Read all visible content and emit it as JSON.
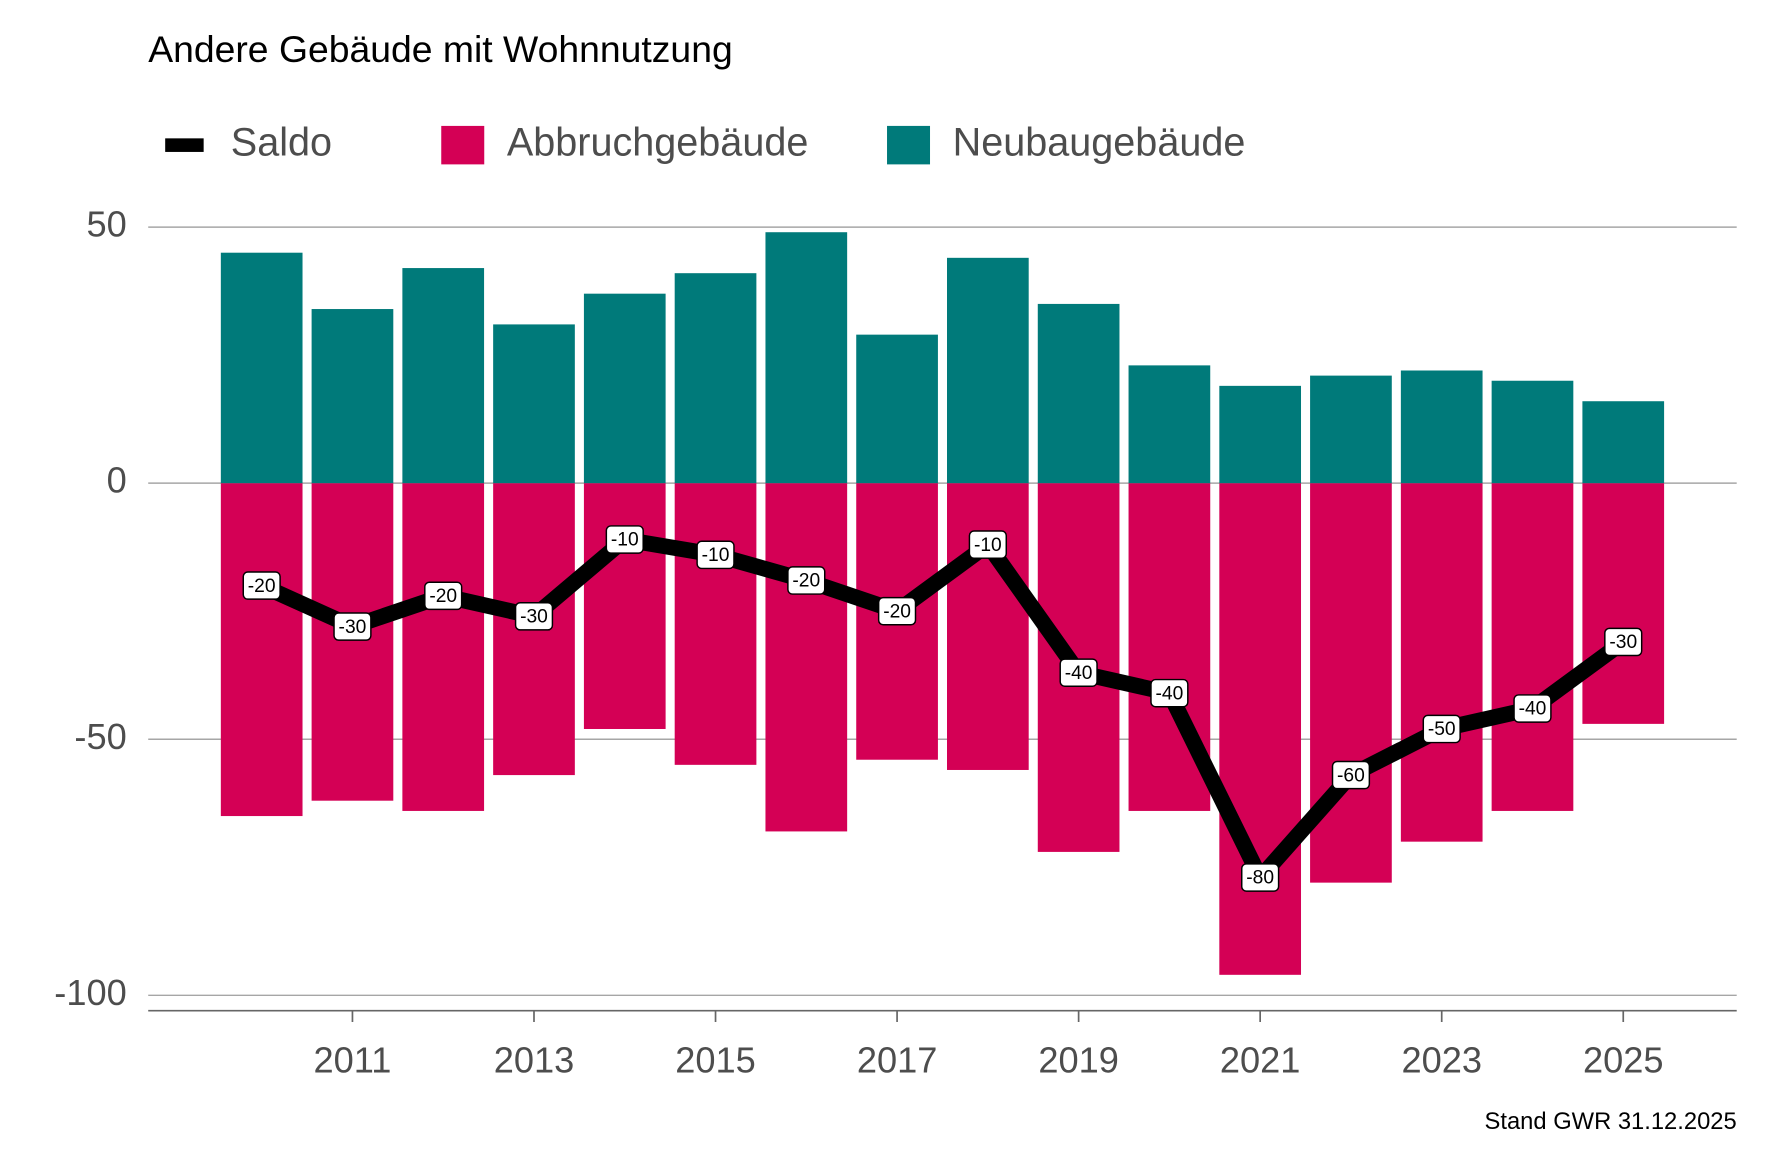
{
  "chart_data": {
    "type": "bar",
    "title": "Andere Gebäude mit Wohnnutzung",
    "caption": "Stand GWR 31.12.2025",
    "x": [
      2010,
      2011,
      2012,
      2013,
      2014,
      2015,
      2016,
      2017,
      2018,
      2019,
      2020,
      2021,
      2022,
      2023,
      2024,
      2025
    ],
    "series": [
      {
        "name": "Saldo",
        "type": "line",
        "color": "#000000",
        "values": [
          -20,
          -28,
          -22,
          -26,
          -11,
          -14,
          -19,
          -25,
          -12,
          -37,
          -41,
          -77,
          -57,
          -48,
          -44,
          -31
        ],
        "value_labels": [
          "-20",
          "-30",
          "-20",
          "-30",
          "-10",
          "-10",
          "-20",
          "-20",
          "-10",
          "-40",
          "-40",
          "-80",
          "-60",
          "-50",
          "-40",
          "-30"
        ]
      },
      {
        "name": "Abbruchgebäude",
        "type": "bar",
        "color": "#d40055",
        "values": [
          -65,
          -62,
          -64,
          -57,
          -48,
          -55,
          -68,
          -54,
          -56,
          -72,
          -64,
          -96,
          -78,
          -70,
          -64,
          -47
        ]
      },
      {
        "name": "Neubaugebäude",
        "type": "bar",
        "color": "#007a7a",
        "values": [
          45,
          34,
          42,
          31,
          37,
          41,
          49,
          29,
          44,
          35,
          23,
          19,
          21,
          22,
          20,
          16
        ]
      }
    ],
    "xlim": [
      2008.75,
      2026.25
    ],
    "xticks": [
      2011,
      2013,
      2015,
      2017,
      2019,
      2021,
      2023,
      2025
    ],
    "ylim": [
      -103,
      55
    ],
    "yticks": [
      -100,
      -50,
      0,
      50
    ],
    "grid": true,
    "legend": "top"
  }
}
